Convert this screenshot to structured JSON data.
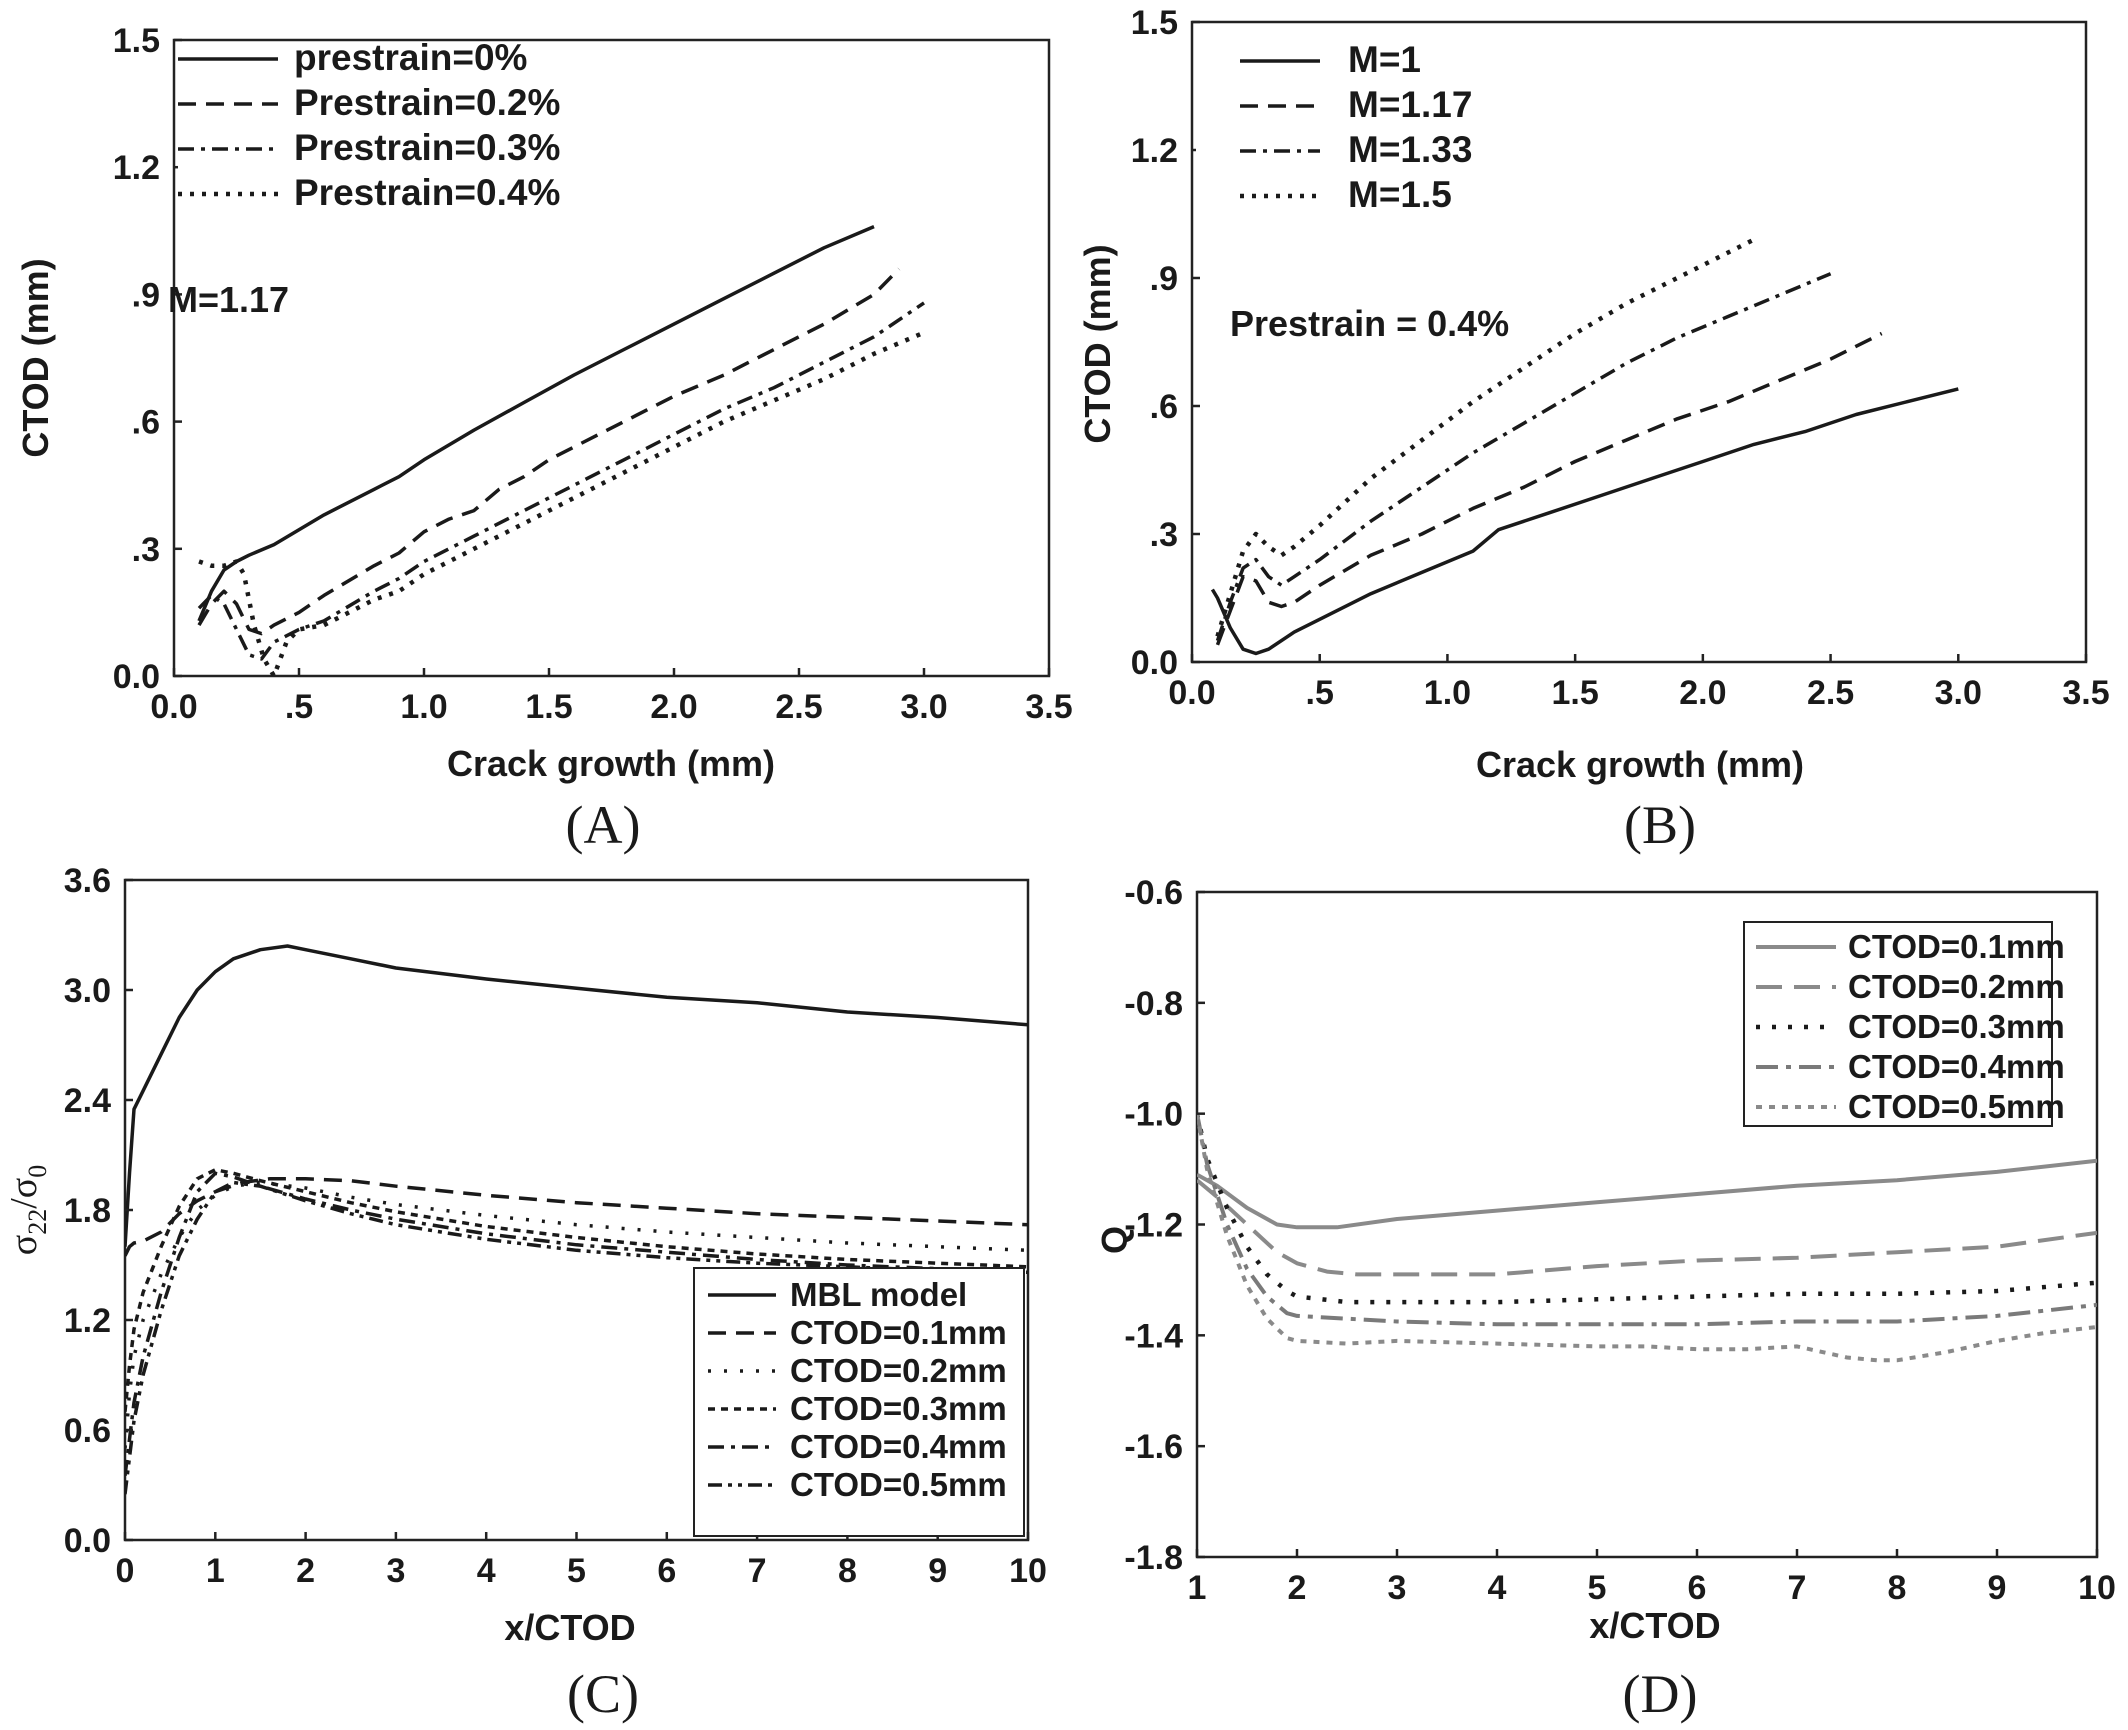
{
  "chart_data": [
    {
      "id": "A",
      "type": "line",
      "panel_label": "(A)",
      "xlabel": "Crack growth (mm)",
      "ylabel": "CTOD (mm)",
      "xlim": [
        0,
        3.5
      ],
      "ylim": [
        0,
        1.5
      ],
      "xticks": [
        "0.0",
        ".5",
        "1.0",
        "1.5",
        "2.0",
        "2.5",
        "3.0",
        "3.5"
      ],
      "yticks": [
        "0.0",
        ".3",
        ".6",
        ".9",
        "1.2",
        "1.5"
      ],
      "annotation": "M=1.17",
      "legend_position": "top-left",
      "series": [
        {
          "name": "prestrain=0%",
          "style": "solid",
          "x": [
            0.1,
            0.15,
            0.2,
            0.25,
            0.3,
            0.4,
            0.5,
            0.6,
            0.8,
            0.9,
            1.0,
            1.2,
            1.4,
            1.6,
            1.8,
            2.0,
            2.2,
            2.4,
            2.6,
            2.8
          ],
          "y": [
            0.13,
            0.2,
            0.25,
            0.27,
            0.285,
            0.31,
            0.345,
            0.38,
            0.44,
            0.47,
            0.51,
            0.58,
            0.645,
            0.71,
            0.77,
            0.83,
            0.89,
            0.95,
            1.01,
            1.06
          ]
        },
        {
          "name": "Prestrain=0.2%",
          "style": "dash",
          "x": [
            0.1,
            0.15,
            0.2,
            0.25,
            0.3,
            0.35,
            0.4,
            0.5,
            0.6,
            0.8,
            0.9,
            1.0,
            1.1,
            1.2,
            1.3,
            1.4,
            1.5,
            1.6,
            1.8,
            2.0,
            2.2,
            2.4,
            2.6,
            2.8,
            2.9
          ],
          "y": [
            0.12,
            0.17,
            0.2,
            0.17,
            0.11,
            0.1,
            0.12,
            0.15,
            0.19,
            0.26,
            0.29,
            0.34,
            0.37,
            0.39,
            0.44,
            0.47,
            0.51,
            0.54,
            0.6,
            0.66,
            0.71,
            0.77,
            0.83,
            0.9,
            0.96
          ]
        },
        {
          "name": "Prestrain=0.3%",
          "style": "dashdot",
          "x": [
            0.1,
            0.15,
            0.2,
            0.25,
            0.3,
            0.35,
            0.4,
            0.5,
            0.6,
            0.8,
            0.9,
            1.0,
            1.2,
            1.4,
            1.6,
            1.8,
            2.0,
            2.2,
            2.4,
            2.6,
            2.8,
            3.0
          ],
          "y": [
            0.16,
            0.19,
            0.17,
            0.11,
            0.05,
            0.04,
            0.08,
            0.11,
            0.13,
            0.2,
            0.23,
            0.27,
            0.33,
            0.39,
            0.45,
            0.51,
            0.57,
            0.63,
            0.68,
            0.74,
            0.8,
            0.88
          ]
        },
        {
          "name": "Prestrain=0.4%",
          "style": "dot",
          "x": [
            0.1,
            0.15,
            0.2,
            0.25,
            0.28,
            0.32,
            0.36,
            0.4,
            0.45,
            0.5,
            0.6,
            0.8,
            0.9,
            1.0,
            1.2,
            1.4,
            1.6,
            1.8,
            2.0,
            2.2,
            2.4,
            2.6,
            2.8,
            3.0
          ],
          "y": [
            0.27,
            0.26,
            0.26,
            0.27,
            0.24,
            0.12,
            0.04,
            0.0,
            0.08,
            0.11,
            0.12,
            0.18,
            0.2,
            0.24,
            0.3,
            0.36,
            0.42,
            0.48,
            0.54,
            0.6,
            0.65,
            0.7,
            0.76,
            0.81
          ]
        }
      ]
    },
    {
      "id": "B",
      "type": "line",
      "panel_label": "(B)",
      "xlabel": "Crack growth (mm)",
      "ylabel": "CTOD (mm)",
      "xlim": [
        0,
        3.5
      ],
      "ylim": [
        0,
        1.5
      ],
      "xticks": [
        "0.0",
        ".5",
        "1.0",
        "1.5",
        "2.0",
        "2.5",
        "3.0",
        "3.5"
      ],
      "yticks": [
        "0.0",
        ".3",
        ".6",
        ".9",
        "1.2",
        "1.5"
      ],
      "annotation": "Prestrain = 0.4%",
      "legend_position": "top-left",
      "series": [
        {
          "name": "M=1",
          "style": "solid",
          "x": [
            0.08,
            0.1,
            0.15,
            0.2,
            0.25,
            0.3,
            0.4,
            0.5,
            0.7,
            0.9,
            1.1,
            1.2,
            1.4,
            1.6,
            1.8,
            2.0,
            2.2,
            2.4,
            2.6,
            2.8,
            3.0
          ],
          "y": [
            0.17,
            0.15,
            0.08,
            0.03,
            0.02,
            0.03,
            0.07,
            0.1,
            0.16,
            0.21,
            0.26,
            0.31,
            0.35,
            0.39,
            0.43,
            0.47,
            0.51,
            0.54,
            0.58,
            0.61,
            0.64
          ]
        },
        {
          "name": "M=1.17",
          "style": "dash",
          "x": [
            0.1,
            0.15,
            0.2,
            0.25,
            0.3,
            0.35,
            0.4,
            0.5,
            0.7,
            0.9,
            1.1,
            1.3,
            1.5,
            1.7,
            1.9,
            2.1,
            2.3,
            2.5,
            2.7
          ],
          "y": [
            0.04,
            0.12,
            0.2,
            0.19,
            0.14,
            0.13,
            0.14,
            0.18,
            0.25,
            0.3,
            0.36,
            0.41,
            0.47,
            0.52,
            0.57,
            0.61,
            0.66,
            0.71,
            0.77
          ]
        },
        {
          "name": "M=1.33",
          "style": "dashdot",
          "x": [
            0.1,
            0.15,
            0.2,
            0.25,
            0.3,
            0.35,
            0.4,
            0.5,
            0.7,
            0.9,
            1.1,
            1.3,
            1.5,
            1.7,
            1.9,
            2.1,
            2.3,
            2.5
          ],
          "y": [
            0.05,
            0.14,
            0.22,
            0.24,
            0.2,
            0.18,
            0.2,
            0.24,
            0.33,
            0.41,
            0.49,
            0.56,
            0.63,
            0.7,
            0.76,
            0.81,
            0.86,
            0.91
          ]
        },
        {
          "name": "M=1.5",
          "style": "dot",
          "x": [
            0.1,
            0.15,
            0.2,
            0.25,
            0.3,
            0.35,
            0.4,
            0.5,
            0.7,
            0.9,
            1.1,
            1.3,
            1.5,
            1.7,
            1.9,
            2.1,
            2.2
          ],
          "y": [
            0.06,
            0.16,
            0.26,
            0.3,
            0.27,
            0.25,
            0.27,
            0.32,
            0.43,
            0.52,
            0.61,
            0.69,
            0.77,
            0.84,
            0.9,
            0.96,
            0.99
          ]
        }
      ]
    },
    {
      "id": "C",
      "type": "line",
      "panel_label": "(C)",
      "xlabel": "x/CTOD",
      "ylabel": "σ22/σ0",
      "ylabel_main": "σ",
      "ylabel_sub1": "22",
      "ylabel_mid": "/σ",
      "ylabel_sub2": "0",
      "xlim": [
        0,
        10
      ],
      "ylim": [
        0,
        3.6
      ],
      "xticks": [
        "0",
        "1",
        "2",
        "3",
        "4",
        "5",
        "6",
        "7",
        "8",
        "9",
        "10"
      ],
      "yticks": [
        "0.0",
        "0.6",
        "1.2",
        "1.8",
        "2.4",
        "3.0",
        "3.6"
      ],
      "legend_position": "bottom-right",
      "series": [
        {
          "name": "MBL model",
          "style": "solid",
          "x": [
            0.0,
            0.05,
            0.1,
            0.2,
            0.4,
            0.6,
            0.8,
            1.0,
            1.2,
            1.5,
            1.8,
            2.0,
            2.5,
            3.0,
            4.0,
            5.0,
            6.0,
            7.0,
            8.0,
            9.0,
            10.0
          ],
          "y": [
            1.6,
            2.0,
            2.35,
            2.45,
            2.65,
            2.85,
            3.0,
            3.1,
            3.17,
            3.22,
            3.24,
            3.22,
            3.17,
            3.12,
            3.06,
            3.01,
            2.96,
            2.93,
            2.88,
            2.85,
            2.81
          ]
        },
        {
          "name": "CTOD=0.1mm",
          "style": "dash",
          "x": [
            0.0,
            0.05,
            0.1,
            0.2,
            0.4,
            0.6,
            0.8,
            1.0,
            1.3,
            1.6,
            2.0,
            2.5,
            3.0,
            4.0,
            5.0,
            6.0,
            7.0,
            8.0,
            9.0,
            10.0
          ],
          "y": [
            1.55,
            1.6,
            1.62,
            1.63,
            1.68,
            1.78,
            1.85,
            1.9,
            1.95,
            1.97,
            1.97,
            1.96,
            1.93,
            1.88,
            1.84,
            1.81,
            1.78,
            1.76,
            1.74,
            1.72
          ]
        },
        {
          "name": "CTOD=0.2mm",
          "style": "sparsedot",
          "x": [
            0.0,
            0.05,
            0.1,
            0.2,
            0.4,
            0.6,
            0.8,
            1.0,
            1.2,
            1.5,
            2.0,
            2.5,
            3.0,
            4.0,
            5.0,
            6.0,
            7.0,
            8.0,
            9.0,
            10.0
          ],
          "y": [
            0.5,
            0.8,
            1.0,
            1.2,
            1.45,
            1.65,
            1.8,
            1.88,
            1.93,
            1.95,
            1.92,
            1.87,
            1.83,
            1.77,
            1.72,
            1.68,
            1.65,
            1.62,
            1.6,
            1.58
          ]
        },
        {
          "name": "CTOD=0.3mm",
          "style": "shortdash",
          "x": [
            0.0,
            0.05,
            0.1,
            0.2,
            0.4,
            0.6,
            0.8,
            1.0,
            1.2,
            1.5,
            2.0,
            2.5,
            3.0,
            4.0,
            5.0,
            6.0,
            7.0,
            8.0,
            9.0,
            10.0
          ],
          "y": [
            0.7,
            0.95,
            1.15,
            1.35,
            1.6,
            1.82,
            1.97,
            2.02,
            2.0,
            1.96,
            1.9,
            1.84,
            1.79,
            1.71,
            1.65,
            1.6,
            1.56,
            1.53,
            1.51,
            1.49
          ]
        },
        {
          "name": "CTOD=0.4mm",
          "style": "dashdot",
          "x": [
            0.0,
            0.05,
            0.1,
            0.2,
            0.4,
            0.6,
            0.8,
            1.0,
            1.2,
            1.5,
            2.0,
            2.5,
            3.0,
            4.0,
            5.0,
            6.0,
            7.0,
            8.0,
            9.0,
            10.0
          ],
          "y": [
            0.35,
            0.55,
            0.75,
            1.0,
            1.35,
            1.65,
            1.9,
            2.0,
            1.98,
            1.93,
            1.86,
            1.8,
            1.75,
            1.67,
            1.61,
            1.57,
            1.53,
            1.5,
            1.48,
            1.46
          ]
        },
        {
          "name": "CTOD=0.5mm",
          "style": "dashdotdot",
          "x": [
            0.0,
            0.05,
            0.1,
            0.2,
            0.4,
            0.6,
            0.8,
            1.0,
            1.2,
            1.5,
            2.0,
            2.5,
            3.0,
            4.0,
            5.0,
            6.0,
            7.0,
            8.0,
            9.0,
            10.0
          ],
          "y": [
            0.25,
            0.45,
            0.65,
            0.9,
            1.25,
            1.55,
            1.75,
            1.9,
            1.95,
            1.93,
            1.85,
            1.78,
            1.72,
            1.64,
            1.58,
            1.54,
            1.51,
            1.49,
            1.47,
            1.46
          ]
        }
      ]
    },
    {
      "id": "D",
      "type": "line",
      "panel_label": "(D)",
      "xlabel": "x/CTOD",
      "ylabel": "Q",
      "xlim": [
        1,
        10
      ],
      "ylim": [
        -1.8,
        -0.6
      ],
      "xticks": [
        "1",
        "2",
        "3",
        "4",
        "5",
        "6",
        "7",
        "8",
        "9",
        "10"
      ],
      "yticks": [
        "-1.8",
        "-1.6",
        "-1.4",
        "-1.2",
        "-1.0",
        "-0.8",
        "-0.6"
      ],
      "legend_position": "top-right",
      "series": [
        {
          "name": "CTOD=0.1mm",
          "style": "gray-solid",
          "x": [
            1.0,
            1.2,
            1.5,
            1.8,
            2.0,
            2.4,
            3.0,
            4.0,
            5.0,
            6.0,
            7.0,
            8.0,
            9.0,
            10.0
          ],
          "y": [
            -1.11,
            -1.13,
            -1.17,
            -1.2,
            -1.205,
            -1.205,
            -1.19,
            -1.175,
            -1.16,
            -1.145,
            -1.13,
            -1.12,
            -1.105,
            -1.085
          ]
        },
        {
          "name": "CTOD=0.2mm",
          "style": "gray-dash",
          "x": [
            1.0,
            1.2,
            1.5,
            1.8,
            2.0,
            2.3,
            2.6,
            3.0,
            4.0,
            5.0,
            6.0,
            7.0,
            8.0,
            9.0,
            10.0
          ],
          "y": [
            -1.12,
            -1.15,
            -1.2,
            -1.25,
            -1.27,
            -1.285,
            -1.29,
            -1.29,
            -1.29,
            -1.275,
            -1.265,
            -1.26,
            -1.25,
            -1.24,
            -1.215
          ]
        },
        {
          "name": "CTOD=0.3mm",
          "style": "dot",
          "x": [
            1.0,
            1.1,
            1.3,
            1.5,
            1.7,
            1.9,
            2.0,
            2.5,
            3.0,
            4.0,
            5.0,
            6.0,
            7.0,
            8.0,
            9.0,
            10.0
          ],
          "y": [
            -1.0,
            -1.08,
            -1.17,
            -1.24,
            -1.29,
            -1.32,
            -1.33,
            -1.34,
            -1.34,
            -1.34,
            -1.335,
            -1.33,
            -1.325,
            -1.325,
            -1.32,
            -1.305
          ]
        },
        {
          "name": "CTOD=0.4mm",
          "style": "gray-dashdot",
          "x": [
            1.0,
            1.1,
            1.3,
            1.5,
            1.7,
            1.9,
            2.0,
            2.5,
            3.0,
            4.0,
            5.0,
            6.0,
            7.0,
            8.0,
            9.0,
            10.0
          ],
          "y": [
            -1.0,
            -1.09,
            -1.2,
            -1.28,
            -1.33,
            -1.36,
            -1.365,
            -1.37,
            -1.375,
            -1.38,
            -1.38,
            -1.38,
            -1.375,
            -1.375,
            -1.365,
            -1.345
          ]
        },
        {
          "name": "CTOD=0.5mm",
          "style": "gray-dot",
          "x": [
            1.0,
            1.1,
            1.3,
            1.5,
            1.7,
            1.9,
            2.0,
            2.5,
            3.0,
            4.0,
            5.0,
            5.5,
            6.0,
            6.5,
            7.0,
            7.5,
            7.8,
            8.0,
            8.5,
            9.0,
            9.5,
            10.0
          ],
          "y": [
            -1.0,
            -1.1,
            -1.22,
            -1.31,
            -1.37,
            -1.405,
            -1.41,
            -1.415,
            -1.41,
            -1.415,
            -1.42,
            -1.42,
            -1.425,
            -1.425,
            -1.42,
            -1.44,
            -1.445,
            -1.445,
            -1.43,
            -1.41,
            -1.395,
            -1.385
          ]
        }
      ]
    }
  ]
}
